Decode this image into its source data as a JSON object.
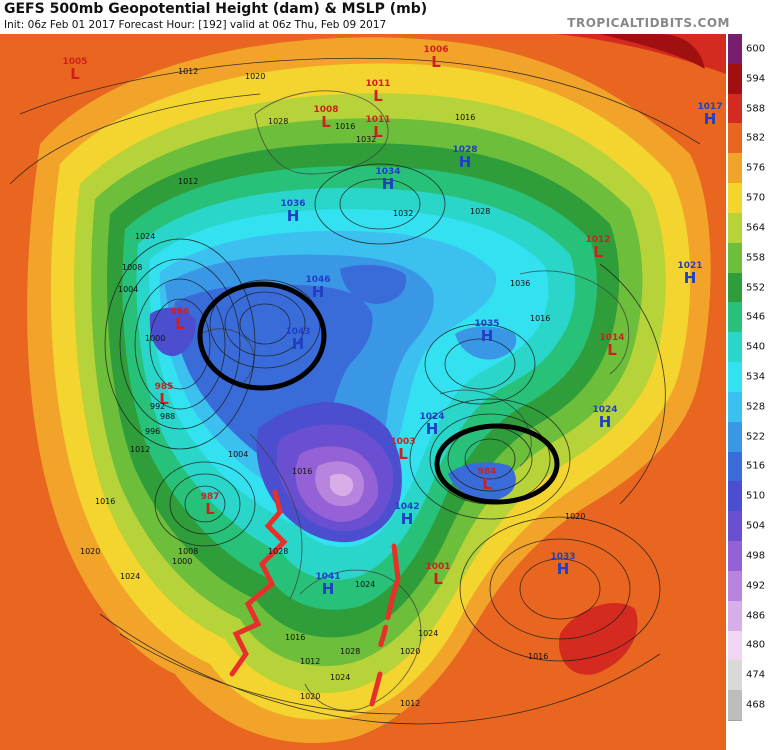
{
  "header": {
    "title": "GEFS 500mb Geopotential Height (dam) & MSLP (mb)",
    "subtitle": "Init: 06z Feb 01 2017   Forecast Hour: [192]   valid at 06z Thu, Feb 09 2017",
    "site": "TROPICALTIDBITS.COM"
  },
  "legend": {
    "units_note": "500mb height (dam)",
    "levels": [
      {
        "value": "600",
        "color": "#7a1c6e"
      },
      {
        "value": "594",
        "color": "#a01010"
      },
      {
        "value": "588",
        "color": "#d42a1f"
      },
      {
        "value": "582",
        "color": "#e8661f"
      },
      {
        "value": "576",
        "color": "#f2a42a"
      },
      {
        "value": "570",
        "color": "#f4d52f"
      },
      {
        "value": "564",
        "color": "#b6d33a"
      },
      {
        "value": "558",
        "color": "#6cbe3b"
      },
      {
        "value": "552",
        "color": "#2f9e3a"
      },
      {
        "value": "546",
        "color": "#27c17a"
      },
      {
        "value": "540",
        "color": "#29d6c9"
      },
      {
        "value": "534",
        "color": "#33e1f0"
      },
      {
        "value": "528",
        "color": "#3cc0ef"
      },
      {
        "value": "522",
        "color": "#3a97e6"
      },
      {
        "value": "516",
        "color": "#3a6cd9"
      },
      {
        "value": "510",
        "color": "#4b4fcf"
      },
      {
        "value": "504",
        "color": "#6a4fd1"
      },
      {
        "value": "498",
        "color": "#9561d6"
      },
      {
        "value": "492",
        "color": "#b784de"
      },
      {
        "value": "486",
        "color": "#d7aee8"
      },
      {
        "value": "480",
        "color": "#f0d6f3"
      },
      {
        "value": "474",
        "color": "#d9d9d9"
      },
      {
        "value": "468",
        "color": "#bdbdbd"
      }
    ]
  },
  "pressure_centers": [
    {
      "type": "L",
      "value": "1005",
      "color": "#d11f1f"
    },
    {
      "type": "L",
      "value": "1011",
      "color": "#d11f1f"
    },
    {
      "type": "L",
      "value": "1008",
      "color": "#d11f1f"
    },
    {
      "type": "L",
      "value": "1011",
      "color": "#d11f1f"
    },
    {
      "type": "L",
      "value": "1006",
      "color": "#d11f1f"
    },
    {
      "type": "H",
      "value": "1017",
      "color": "#1f3fc6"
    },
    {
      "type": "H",
      "value": "1028",
      "color": "#1f3fc6"
    },
    {
      "type": "H",
      "value": "1034",
      "color": "#1f3fc6"
    },
    {
      "type": "H",
      "value": "1036",
      "color": "#1f3fc6"
    },
    {
      "type": "L",
      "value": "1012",
      "color": "#d11f1f"
    },
    {
      "type": "H",
      "value": "1021",
      "color": "#1f3fc6"
    },
    {
      "type": "H",
      "value": "1046",
      "color": "#1f3fc6"
    },
    {
      "type": "L",
      "value": "986",
      "color": "#d11f1f"
    },
    {
      "type": "H",
      "value": "1043",
      "color": "#1f3fc6"
    },
    {
      "type": "H",
      "value": "1035",
      "color": "#1f3fc6"
    },
    {
      "type": "L",
      "value": "1014",
      "color": "#d11f1f"
    },
    {
      "type": "L",
      "value": "985",
      "color": "#d11f1f"
    },
    {
      "type": "H",
      "value": "1024",
      "color": "#1f3fc6"
    },
    {
      "type": "L",
      "value": "1003",
      "color": "#d11f1f"
    },
    {
      "type": "H",
      "value": "1024",
      "color": "#1f3fc6"
    },
    {
      "type": "L",
      "value": "984",
      "color": "#d11f1f"
    },
    {
      "type": "L",
      "value": "987",
      "color": "#d11f1f"
    },
    {
      "type": "H",
      "value": "1042",
      "color": "#1f3fc6"
    },
    {
      "type": "L",
      "value": "1001",
      "color": "#d11f1f"
    },
    {
      "type": "H",
      "value": "1033",
      "color": "#1f3fc6"
    },
    {
      "type": "H",
      "value": "1041",
      "color": "#1f3fc6"
    }
  ],
  "isobar_labels": [
    "1012",
    "1020",
    "1028",
    "1016",
    "1032",
    "1016",
    "1012",
    "1032",
    "1028",
    "1024",
    "1008",
    "1036",
    "1004",
    "1016",
    "1000",
    "992",
    "988",
    "996",
    "1012",
    "1016",
    "1020",
    "1024",
    "1004",
    "1008",
    "1000",
    "1028",
    "1016",
    "1020",
    "1024",
    "1028",
    "1016",
    "1012",
    "1024",
    "1020",
    "1024",
    "1016",
    "1020",
    "1012"
  ],
  "annotations": {
    "circles": 2,
    "ridge_lines": 2,
    "trough_lines": 1
  }
}
